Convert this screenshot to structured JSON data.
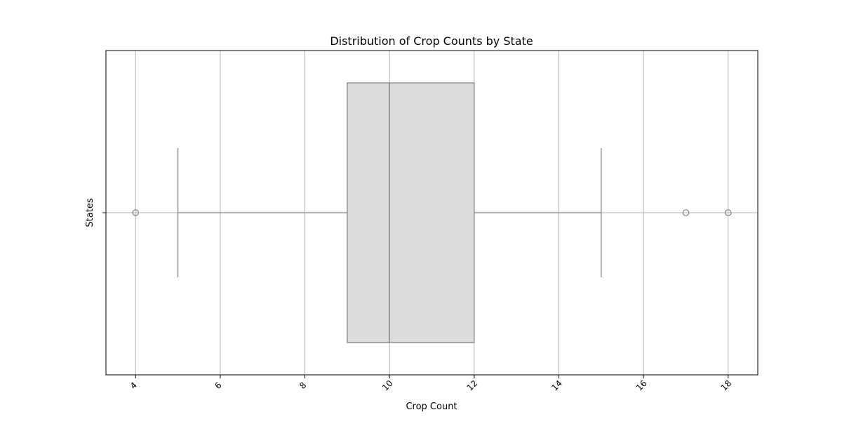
{
  "chart_data": {
    "type": "box",
    "title": "Distribution of Crop Counts by State",
    "xlabel": "Crop Count",
    "ylabel": "States",
    "xlim": [
      3.3,
      18.7
    ],
    "x_ticks": [
      4,
      6,
      8,
      10,
      12,
      14,
      16,
      18
    ],
    "grid": true,
    "box": {
      "whisker_low": 5,
      "q1": 9,
      "median": 10,
      "q3": 12,
      "whisker_high": 15,
      "outliers": [
        4,
        17,
        18
      ]
    },
    "colors": {
      "box_fill": "#dcdcdc",
      "line": "#808080",
      "grid": "#b0b0b0",
      "axis": "#000000"
    }
  }
}
